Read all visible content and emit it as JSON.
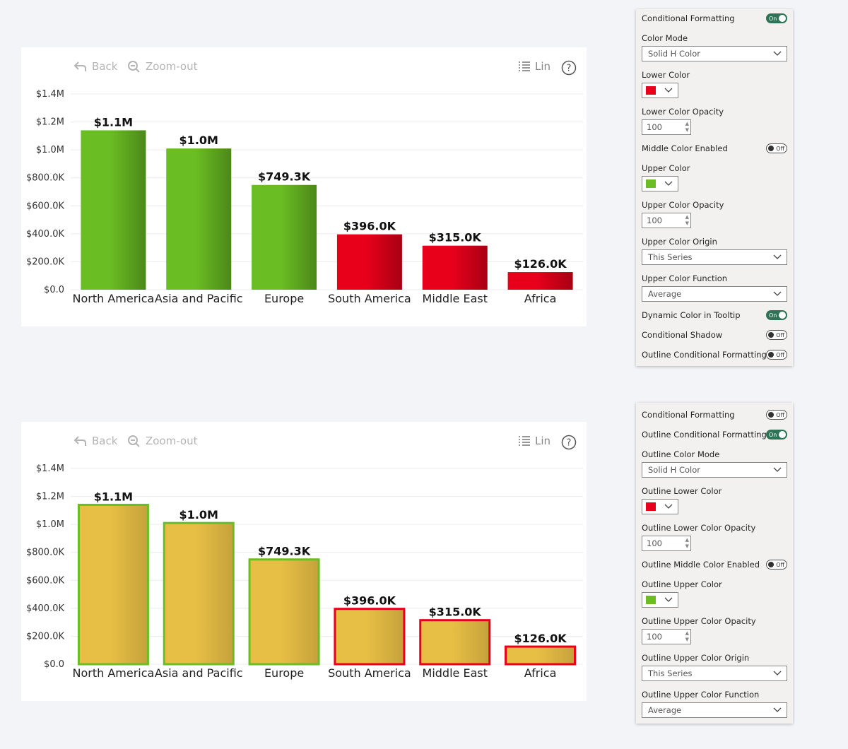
{
  "toolbar": {
    "back_label": "Back",
    "zoom_label": "Zoom-out",
    "scale_label": "Lin"
  },
  "chart_data": [
    {
      "type": "bar",
      "categories": [
        "North America",
        "Asia and Pacific",
        "Europe",
        "South America",
        "Middle East",
        "Africa"
      ],
      "values": [
        1140000,
        1010000,
        749300,
        396000,
        315000,
        126000
      ],
      "data_labels": [
        "$1.1M",
        "$1.0M",
        "$749.3K",
        "$396.0K",
        "$315.0K",
        "$126.0K"
      ],
      "yticks": [
        "$0.0",
        "$200.0K",
        "$400.0K",
        "$600.0K",
        "$800.0K",
        "$1.0M",
        "$1.2M",
        "$1.4M"
      ],
      "ylim": [
        0,
        1400000
      ],
      "bar_colors": [
        "#6abd23",
        "#6abd23",
        "#6abd23",
        "#e8001b",
        "#e8001b",
        "#e8001b"
      ],
      "outline_colors": [],
      "title": "",
      "xlabel": "",
      "ylabel": ""
    },
    {
      "type": "bar",
      "categories": [
        "North America",
        "Asia and Pacific",
        "Europe",
        "South America",
        "Middle East",
        "Africa"
      ],
      "values": [
        1140000,
        1010000,
        749300,
        396000,
        315000,
        126000
      ],
      "data_labels": [
        "$1.1M",
        "$1.0M",
        "$749.3K",
        "$396.0K",
        "$315.0K",
        "$126.0K"
      ],
      "yticks": [
        "$0.0",
        "$200.0K",
        "$400.0K",
        "$600.0K",
        "$800.0K",
        "$1.0M",
        "$1.2M",
        "$1.4M"
      ],
      "ylim": [
        0,
        1400000
      ],
      "bar_colors": [
        "#e8bf45",
        "#e8bf45",
        "#e8bf45",
        "#e8bf45",
        "#e8bf45",
        "#e8bf45"
      ],
      "outline_colors": [
        "#6abd23",
        "#6abd23",
        "#6abd23",
        "#e8001b",
        "#e8001b",
        "#e8001b"
      ],
      "title": "",
      "xlabel": "",
      "ylabel": ""
    }
  ],
  "panel1": {
    "conditional_formatting": "Conditional Formatting",
    "cf_state": "On",
    "color_mode_label": "Color Mode",
    "color_mode_value": "Solid H Color",
    "lower_color_label": "Lower Color",
    "lower_color": "#e8001b",
    "lower_opacity_label": "Lower Color Opacity",
    "lower_opacity_value": "100",
    "middle_enabled_label": "Middle Color Enabled",
    "middle_state": "Off",
    "upper_color_label": "Upper Color",
    "upper_color": "#6abd23",
    "upper_opacity_label": "Upper Color Opacity",
    "upper_opacity_value": "100",
    "upper_origin_label": "Upper Color Origin",
    "upper_origin_value": "This Series",
    "upper_function_label": "Upper Color Function",
    "upper_function_value": "Average",
    "dynamic_tooltip_label": "Dynamic Color in Tooltip",
    "dynamic_state": "On",
    "conditional_shadow_label": "Conditional Shadow",
    "shadow_state": "Off",
    "outline_cf_label": "Outline Conditional Formatting",
    "outline_state": "Off"
  },
  "panel2": {
    "conditional_formatting": "Conditional Formatting",
    "cf_state": "Off",
    "outline_cf_label": "Outline Conditional Formatting",
    "outline_state": "On",
    "color_mode_label": "Outline Color Mode",
    "color_mode_value": "Solid H Color",
    "lower_color_label": "Outline Lower Color",
    "lower_color": "#e8001b",
    "lower_opacity_label": "Outline Lower Color Opacity",
    "lower_opacity_value": "100",
    "middle_enabled_label": "Outline Middle Color Enabled",
    "middle_state": "Off",
    "upper_color_label": "Outline Upper Color",
    "upper_color": "#6abd23",
    "upper_opacity_label": "Outline Upper Color Opacity",
    "upper_opacity_value": "100",
    "upper_origin_label": "Outline Upper Color Origin",
    "upper_origin_value": "This Series",
    "upper_function_label": "Outline Upper Color Function",
    "upper_function_value": "Average"
  }
}
